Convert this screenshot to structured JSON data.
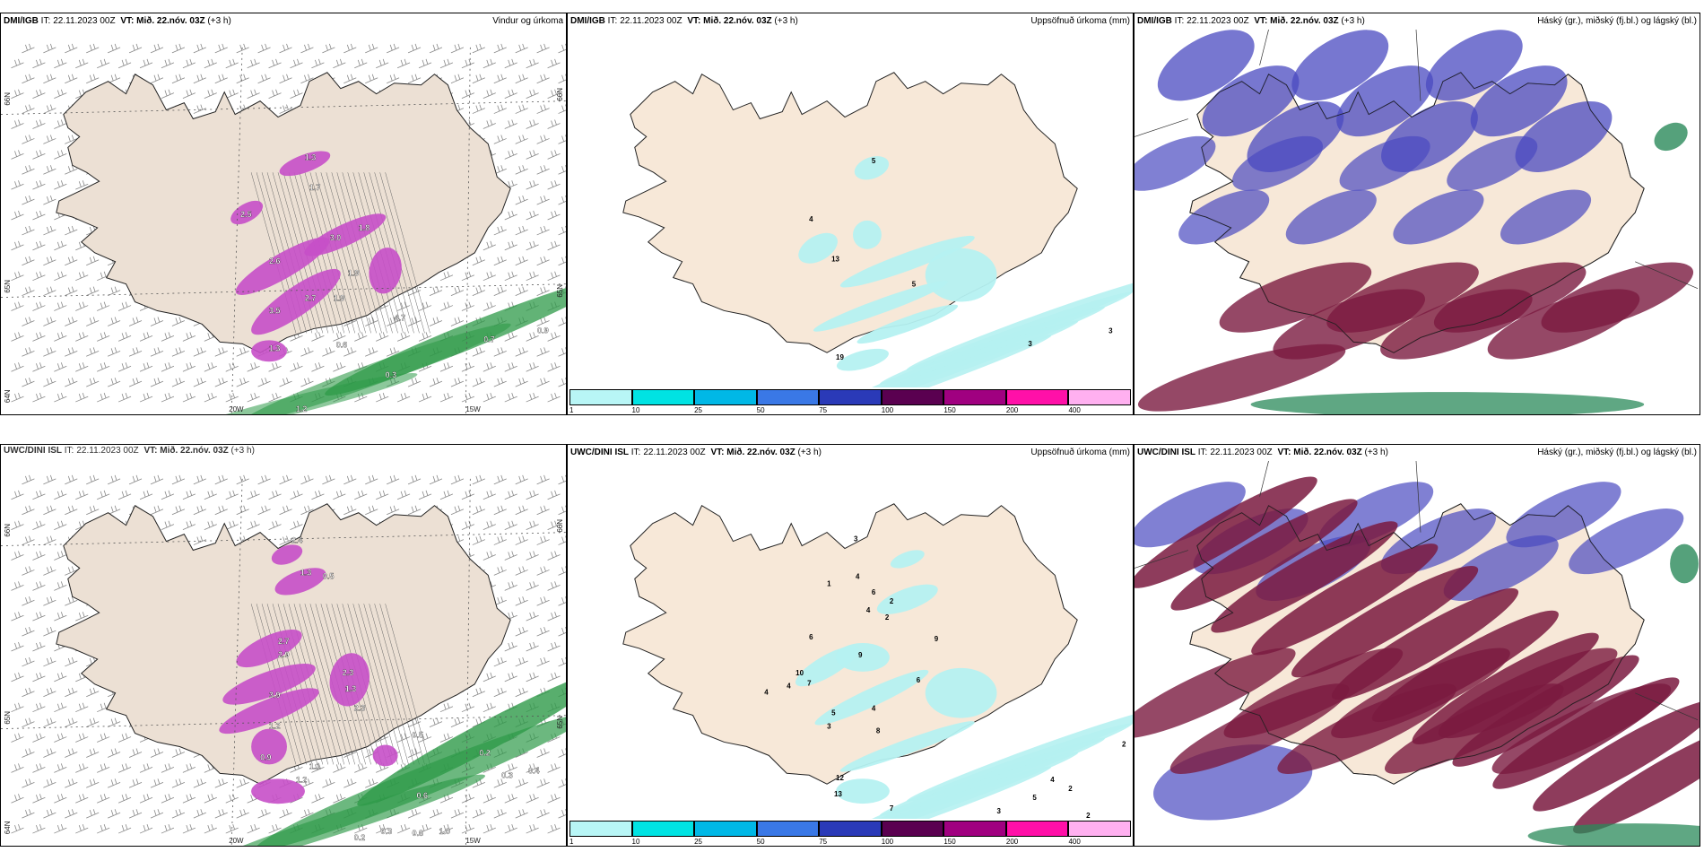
{
  "panels": [
    {
      "model": "DMI/IGB",
      "it_label": "IT:",
      "it_value": "22.11.2023 00Z",
      "vt_label": "VT:",
      "vt_value": "Mið. 22.nóv. 03Z",
      "lead": "(+3 h)",
      "title": "Vindur og úrkoma"
    },
    {
      "model": "DMI/IGB",
      "it_label": "IT:",
      "it_value": "22.11.2023 00Z",
      "vt_label": "VT:",
      "vt_value": "Mið. 22.nóv. 03Z",
      "lead": "(+3 h)",
      "title": "Uppsöfnuð úrkoma (mm)"
    },
    {
      "model": "DMI/IGB",
      "it_label": "IT:",
      "it_value": "22.11.2023 00Z",
      "vt_label": "VT:",
      "vt_value": "Mið. 22.nóv. 03Z",
      "lead": "(+3 h)",
      "title": "Háský (gr.), miðský (fj.bl.) og lágský (bl.)"
    },
    {
      "model": "UWC/DINI ISL",
      "it_label": "IT:",
      "it_value": "22.11.2023 00Z",
      "vt_label": "VT:",
      "vt_value": "Mið. 22.nóv. 03Z",
      "lead": "(+3 h)",
      "title": ""
    },
    {
      "model": "UWC/DINI ISL",
      "it_label": "IT:",
      "it_value": "22.11.2023 00Z",
      "vt_label": "VT:",
      "vt_value": "Mið. 22.nóv. 03Z",
      "lead": "(+3 h)",
      "title": "Uppsöfnuð úrkoma (mm)"
    },
    {
      "model": "UWC/DINI ISL",
      "it_label": "IT:",
      "it_value": "22.11.2023 00Z",
      "vt_label": "VT:",
      "vt_value": "Mið. 22.nóv. 03Z",
      "lead": "(+3 h)",
      "title": "Háský (gr.), miðský (fj.bl.) og lágský (bl.)"
    }
  ],
  "grid_labels": {
    "lat_66": "66N",
    "lat_65": "65N",
    "lat_64": "64N",
    "lon_20": "20W",
    "lon_15": "15W"
  },
  "colorbar": {
    "ticks": [
      "1",
      "10",
      "25",
      "50",
      "75",
      "100",
      "150",
      "200",
      "400"
    ],
    "colors": [
      "#b8f6f6",
      "#00e3e3",
      "#00b8e6",
      "#3a78e6",
      "#2a3ab8",
      "#5a0050",
      "#a00080",
      "#ff10a8",
      "#ffb0f0"
    ]
  },
  "wind_precip_top_values": [
    "1.3",
    "1.7",
    "2.5",
    "3.0",
    "1.8",
    "2.6",
    "1.9",
    "2.7",
    "1.9",
    "3.5",
    "4.7",
    "1.3",
    "0.6",
    "0.3",
    "0.9",
    "0.7",
    "1.2"
  ],
  "wind_precip_bottom_values": [
    "2.4",
    "1.3",
    "0.5",
    "2.7",
    "2.9",
    "3.9",
    "2.3",
    "1.3",
    "2.3",
    "0.5",
    "1.2",
    "0.9",
    "0.6",
    "0.3",
    "0.2",
    "0.3",
    "0.4",
    "1.0",
    "0.8",
    "0.2",
    "1.1",
    "1.2"
  ],
  "accum_top_values": [
    "5",
    "4",
    "13",
    "5",
    "3",
    "3",
    "19"
  ],
  "accum_bottom_values": [
    "3",
    "1",
    "4",
    "6",
    "4",
    "2",
    "2",
    "6",
    "9",
    "10",
    "7",
    "4",
    "9",
    "6",
    "4",
    "5",
    "4",
    "3",
    "8",
    "12",
    "13",
    "7",
    "6",
    "2",
    "3",
    "5",
    "4",
    "2",
    "2",
    "2",
    "3",
    "2",
    "4"
  ],
  "colors": {
    "land": "#f7e8d8",
    "land_wind": "#ece0d4",
    "coast": "#222222",
    "green": "#2e9a48",
    "purple": "#c64fc8",
    "cyan": "#b5f1f1",
    "high_cloud": "#2a8a5a",
    "mid_cloud": "#7a1a40",
    "low_cloud": "#4a4ac0"
  }
}
